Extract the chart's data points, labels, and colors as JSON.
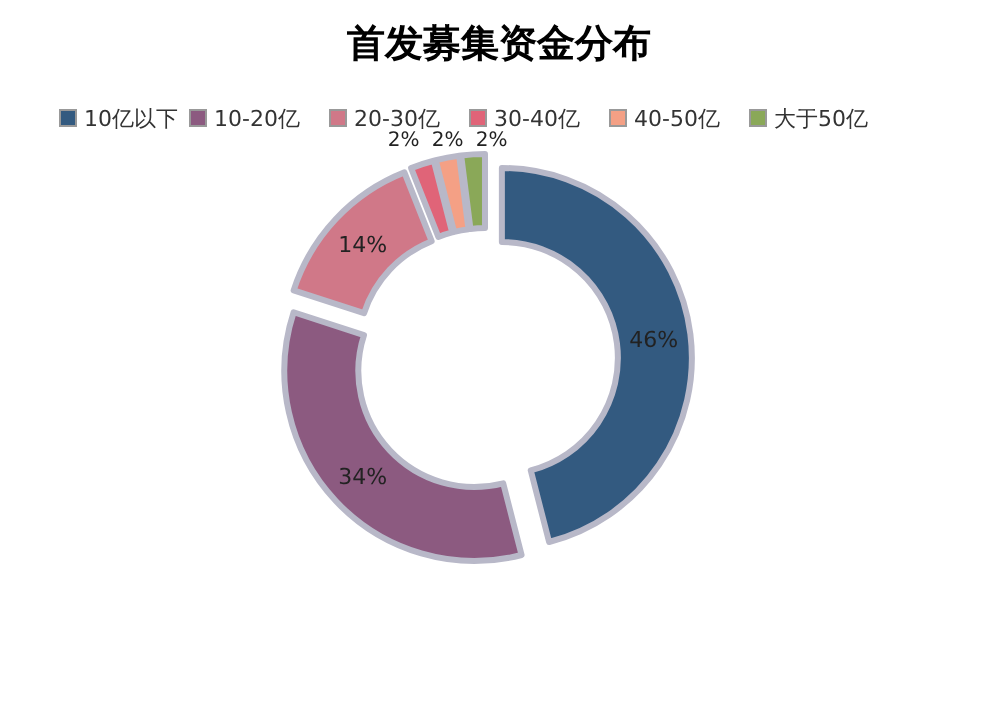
{
  "chart_data": {
    "type": "donut",
    "title": "首发募集资金分布",
    "legend": "top",
    "categories": [
      "10亿以下",
      "10-20亿",
      "20-30亿",
      "30-40亿",
      "40-50亿",
      "大于50亿"
    ],
    "values": [
      46,
      34,
      14,
      2,
      2,
      2
    ],
    "colors": [
      "#335a80",
      "#8c5a80",
      "#d07888",
      "#e06478",
      "#f4a085",
      "#8aa858"
    ],
    "value_labels": [
      "46%",
      "34%",
      "14%",
      "2%",
      "2%",
      "2%"
    ]
  }
}
